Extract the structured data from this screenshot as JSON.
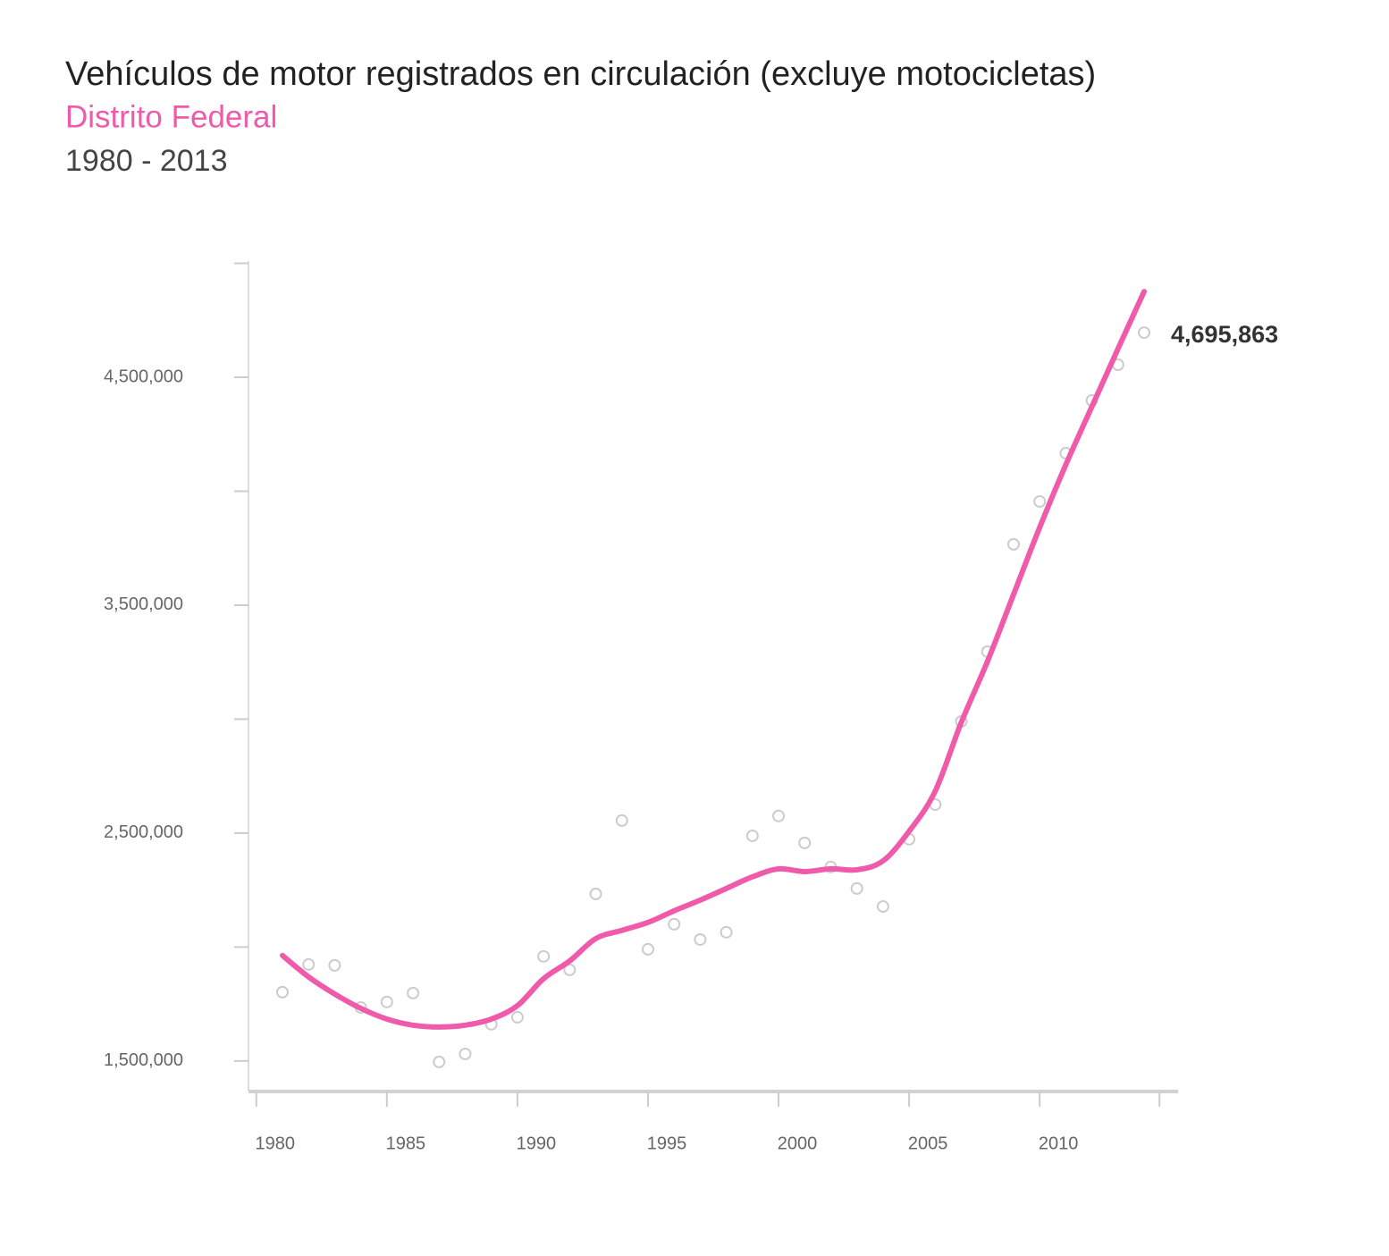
{
  "chart_data": {
    "type": "line",
    "title": "Vehículos de motor registrados en circulación (excluye motocicletas)",
    "subtitle": "Distrito Federal",
    "period": "1980 - 2013",
    "x": [
      1981,
      1982,
      1983,
      1984,
      1985,
      1986,
      1987,
      1988,
      1989,
      1990,
      1991,
      1992,
      1993,
      1994,
      1995,
      1996,
      1997,
      1998,
      1999,
      2000,
      2001,
      2002,
      2003,
      2004,
      2005,
      2006,
      2007,
      2008,
      2009,
      2010,
      2011,
      2012,
      2013,
      2014
    ],
    "series": [
      {
        "type": "scatter",
        "color": "#cccccc",
        "values": [
          1802000,
          1923500,
          1919600,
          1735000,
          1759000,
          1798000,
          1496000,
          1531000,
          1661000,
          1692000,
          1959000,
          1900000,
          2233000,
          2555000,
          1990000,
          2100000,
          2033000,
          2065000,
          2488000,
          2575000,
          2457000,
          2351000,
          2257000,
          2178000,
          2473000,
          2625000,
          2990000,
          3296000,
          3767000,
          3955000,
          4167000,
          4398000,
          4555000,
          4695863
        ],
        "value_labels": [
          null,
          null,
          null,
          null,
          null,
          null,
          null,
          null,
          null,
          null,
          null,
          null,
          null,
          null,
          null,
          null,
          null,
          null,
          null,
          null,
          null,
          null,
          null,
          null,
          null,
          null,
          null,
          null,
          null,
          null,
          null,
          null,
          null,
          "4,695,863"
        ]
      },
      {
        "type": "line",
        "color": "#f05aaa",
        "values": [
          1963000,
          1869000,
          1794000,
          1731000,
          1684000,
          1657000,
          1649000,
          1657000,
          1684000,
          1743000,
          1861000,
          1939000,
          2037000,
          2073000,
          2108000,
          2159000,
          2206000,
          2257000,
          2308000,
          2343000,
          2331000,
          2343000,
          2339000,
          2378000,
          2508000,
          2684000,
          2986000,
          3253000,
          3547000,
          3841000,
          4116000,
          4371000,
          4625000,
          4876000
        ]
      }
    ],
    "xlim": [
      1979.7,
      2015.3
    ],
    "xticks": [
      1980,
      1985,
      1990,
      1995,
      2000,
      2005,
      2010
    ],
    "xminorticks": [
      2015
    ],
    "ylim": [
      1370000,
      5010000
    ],
    "yticks": [
      {
        "value": 1500000,
        "label": "1,500,000"
      },
      {
        "value": 2500000,
        "label": "2,500,000"
      },
      {
        "value": 3500000,
        "label": "3,500,000"
      },
      {
        "value": 4500000,
        "label": "4,500,000"
      }
    ],
    "yminorticks": [
      2000000,
      3000000,
      4000000,
      5000000
    ]
  }
}
